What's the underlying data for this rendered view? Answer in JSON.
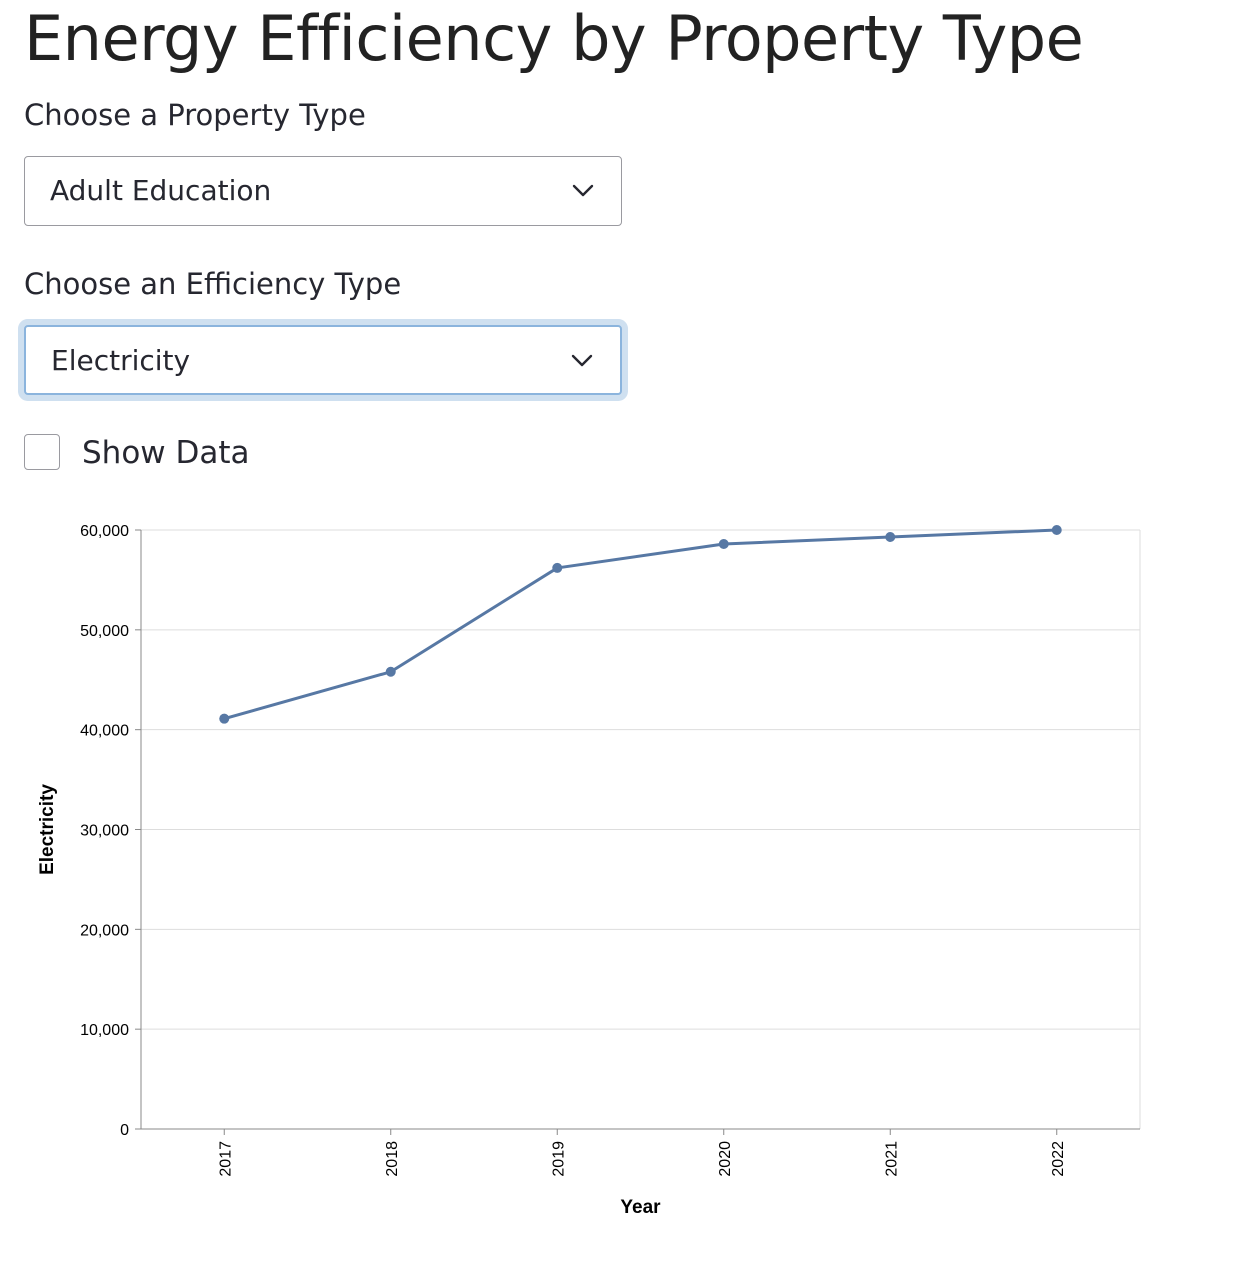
{
  "title": "Energy Efficiency by Property Type",
  "property_select": {
    "label": "Choose a Property Type",
    "value": "Adult Education"
  },
  "efficiency_select": {
    "label": "Choose an Efficiency Type",
    "value": "Electricity"
  },
  "show_data": {
    "label": "Show Data",
    "checked": false
  },
  "colors": {
    "line": "#5778a4",
    "grid": "#dddddd",
    "axis": "#888888",
    "focus_ring": "#cfe0f0"
  },
  "chart_data": {
    "type": "line",
    "x": [
      "2017",
      "2018",
      "2019",
      "2020",
      "2021",
      "2022"
    ],
    "series": [
      {
        "values": [
          41100,
          45800,
          56200,
          58600,
          59300,
          60000
        ]
      }
    ],
    "xlabel": "Year",
    "ylabel": "Electricity",
    "ylim": [
      0,
      60000
    ],
    "yticks": [
      "0",
      "10,000",
      "20,000",
      "30,000",
      "40,000",
      "50,000",
      "60,000"
    ],
    "grid": true,
    "points": true
  }
}
